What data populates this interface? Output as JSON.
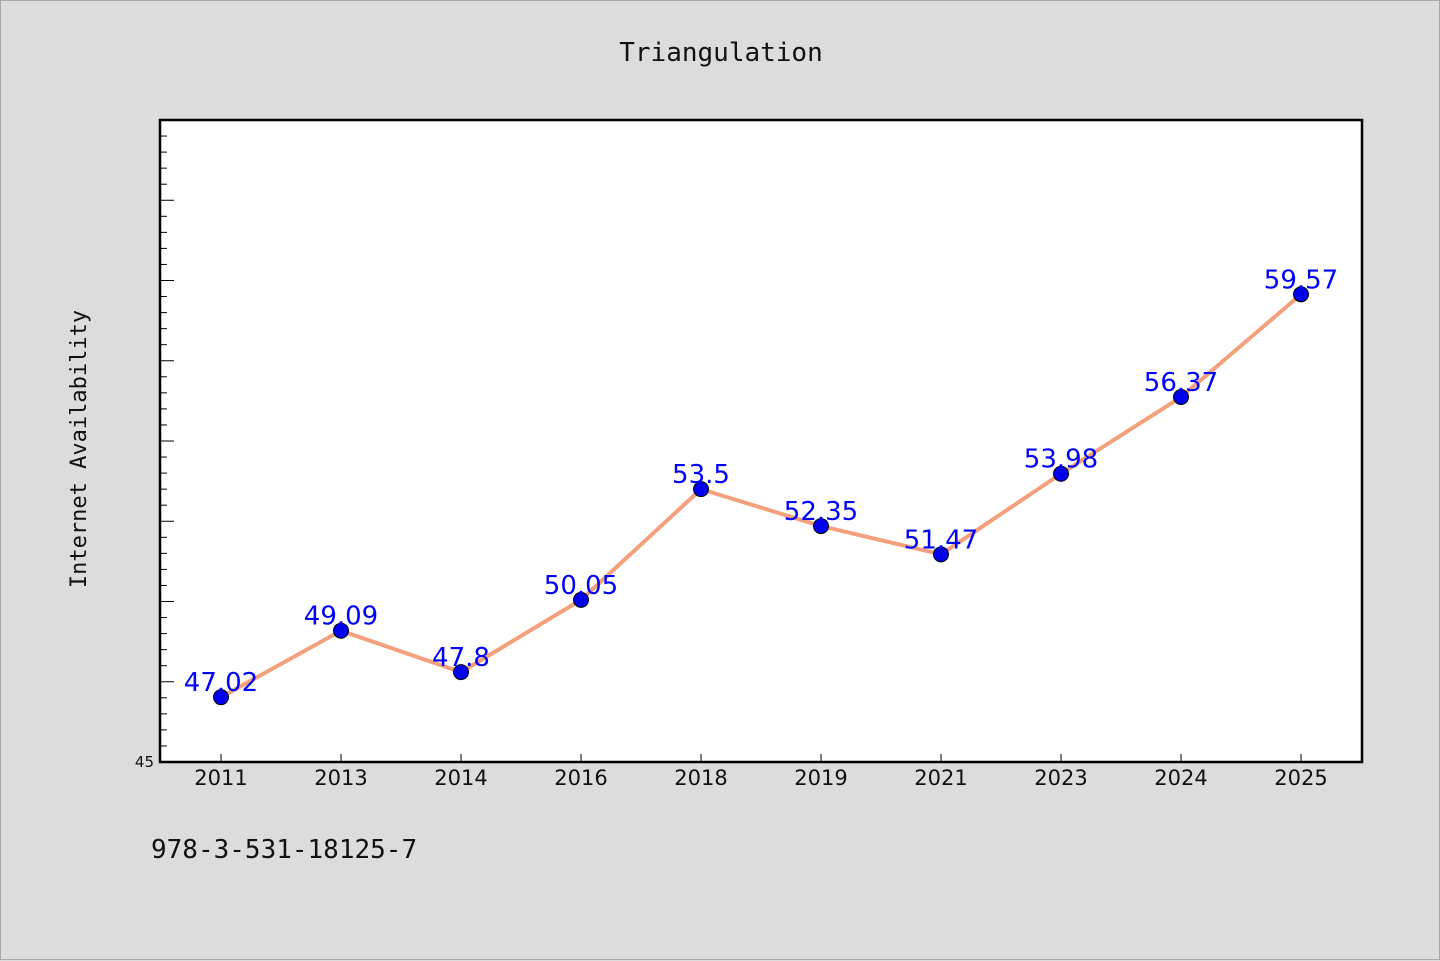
{
  "chart_data": {
    "type": "line",
    "title": "Triangulation",
    "xlabel": "",
    "ylabel": "Internet Availability",
    "categories": [
      "2011",
      "2013",
      "2014",
      "2016",
      "2018",
      "2019",
      "2021",
      "2023",
      "2024",
      "2025"
    ],
    "series": [
      {
        "values": [
          47.02,
          49.09,
          47.8,
          50.05,
          53.5,
          52.35,
          51.47,
          53.98,
          56.37,
          59.57
        ],
        "data_labels": [
          "47.02",
          "49.09",
          "47.8",
          "50.05",
          "53.5",
          "52.35",
          "51.47",
          "53.98",
          "56.37",
          "59.57"
        ],
        "line_color": "#f4a07c",
        "marker_color": "#0000ee"
      }
    ],
    "y_tick_labels": [
      "45"
    ],
    "ylim": [
      45,
      65
    ],
    "grid": false,
    "label_color": "#0000ff"
  },
  "footer": {
    "identifier": "978-3-531-18125-7"
  }
}
